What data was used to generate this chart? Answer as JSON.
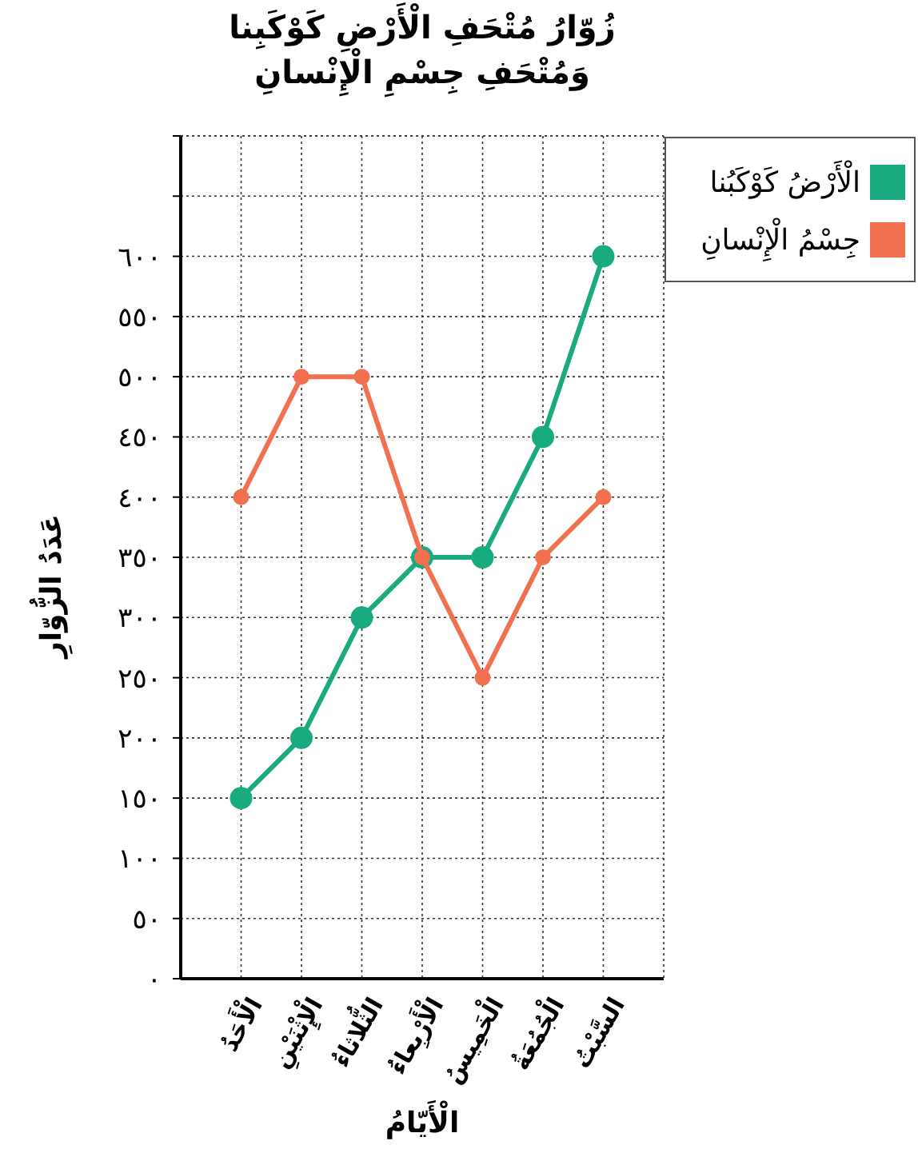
{
  "chart_data": {
    "type": "line",
    "title": "زُوّارُ مُتْحَفِ الْأَرْضِ كَوْكَبِنا\nوَمُتْحَفِ جِسْمِ الْإِنْسانِ",
    "xlabel": "الْأَيّامُ",
    "ylabel": "عَدَدُ الزُّوّارِ",
    "categories": [
      "الْأَحَدُ",
      "الْإِثْنَيْنِ",
      "الثُّلاثاءُ",
      "الْأَرْبِعاءُ",
      "الْخَمِيسُ",
      "الْجُمُعَةُ",
      "السَّبْتُ"
    ],
    "series": [
      {
        "name": "الْأَرْضُ كَوْكَبُنا",
        "color": "#1aaa80",
        "values": [
          150,
          200,
          300,
          350,
          350,
          450,
          600
        ]
      },
      {
        "name": "جِسْمُ الْإِنْسانِ",
        "color": "#f07050",
        "values": [
          400,
          500,
          500,
          350,
          250,
          350,
          400
        ]
      }
    ],
    "ylim": [
      0,
      700
    ],
    "yticks": [
      {
        "value": 0,
        "label": "٠"
      },
      {
        "value": 50,
        "label": "٥٠"
      },
      {
        "value": 100,
        "label": "١٠٠"
      },
      {
        "value": 150,
        "label": "١٥٠"
      },
      {
        "value": 200,
        "label": "٢٠٠"
      },
      {
        "value": 250,
        "label": "٢٥٠"
      },
      {
        "value": 300,
        "label": "٣٠٠"
      },
      {
        "value": 350,
        "label": "٣٥٠"
      },
      {
        "value": 400,
        "label": "٤٠٠"
      },
      {
        "value": 450,
        "label": "٤٥٠"
      },
      {
        "value": 500,
        "label": "٥٠٠"
      },
      {
        "value": 550,
        "label": "٥٥٠"
      },
      {
        "value": 600,
        "label": "٦٠٠"
      },
      {
        "value": 650,
        "label": null
      },
      {
        "value": 700,
        "label": null
      }
    ],
    "grid": true,
    "legend": "top right",
    "marker": "circle",
    "line_style": "solid"
  }
}
